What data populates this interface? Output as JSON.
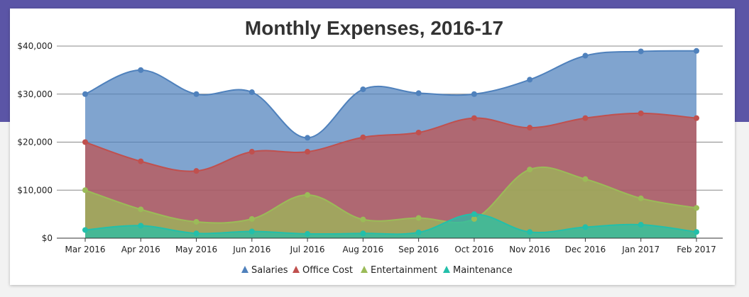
{
  "chart_data": {
    "type": "area",
    "title": "Monthly Expenses, 2016-17",
    "categories": [
      "Mar 2016",
      "Apr 2016",
      "May 2016",
      "Jun 2016",
      "Jul 2016",
      "Aug 2016",
      "Sep 2016",
      "Oct 2016",
      "Nov 2016",
      "Dec 2016",
      "Jan 2017",
      "Feb 2017"
    ],
    "y_ticks": [
      "$0",
      "$10,000",
      "$20,000",
      "$30,000",
      "$40,000"
    ],
    "ylim": [
      0,
      40000
    ],
    "grid": true,
    "legend_position": "bottom",
    "series": [
      {
        "name": "Salaries",
        "color": "#4f81bc",
        "values": [
          30000,
          35000,
          30000,
          30400,
          20900,
          31000,
          30200,
          30000,
          33000,
          38000,
          38900,
          39000
        ]
      },
      {
        "name": "Office Cost",
        "color": "#c0504e",
        "values": [
          20000,
          16000,
          14000,
          18000,
          18000,
          21000,
          22000,
          25000,
          23000,
          25000,
          26000,
          25000
        ]
      },
      {
        "name": "Entertainment",
        "color": "#9bbb58",
        "values": [
          10000,
          6000,
          3400,
          4000,
          9000,
          3900,
          4200,
          4000,
          14300,
          12300,
          8300,
          6300
        ]
      },
      {
        "name": "Maintenance",
        "color": "#23bfaa",
        "values": [
          1700,
          2600,
          1000,
          1400,
          900,
          1000,
          1200,
          5000,
          1300,
          2300,
          2800,
          1300
        ]
      }
    ]
  }
}
